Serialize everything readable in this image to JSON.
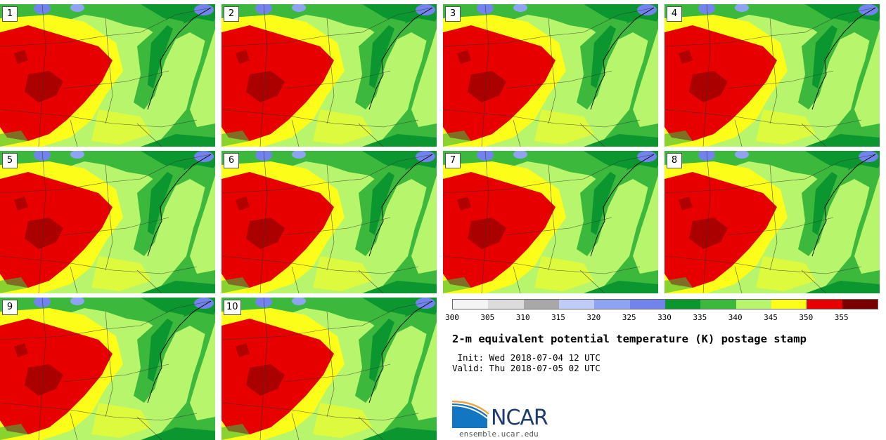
{
  "panels": [
    {
      "label": "1"
    },
    {
      "label": "2"
    },
    {
      "label": "3"
    },
    {
      "label": "4"
    },
    {
      "label": "5"
    },
    {
      "label": "6"
    },
    {
      "label": "7"
    },
    {
      "label": "8"
    },
    {
      "label": "9"
    },
    {
      "label": "10"
    }
  ],
  "colorbar": {
    "ticks": [
      "300",
      "305",
      "310",
      "315",
      "320",
      "325",
      "330",
      "335",
      "340",
      "345",
      "350",
      "355"
    ],
    "colors": [
      "#f4f4f4",
      "#dcdcdc",
      "#a8a8a8",
      "#c0ccf8",
      "#8ea3f2",
      "#7383ee",
      "#0c9630",
      "#3cb83c",
      "#b6f56c",
      "#fdfd1a",
      "#e60000",
      "#7a0000"
    ]
  },
  "title": "2-m equivalent potential temperature (K) postage stamp",
  "init_text": " Init: Wed 2018-07-04 12 UTC",
  "valid_text": "Valid: Thu 2018-07-05 02 UTC",
  "logo": {
    "name": "NCAR",
    "url": "ensemble.ucar.edu"
  }
}
